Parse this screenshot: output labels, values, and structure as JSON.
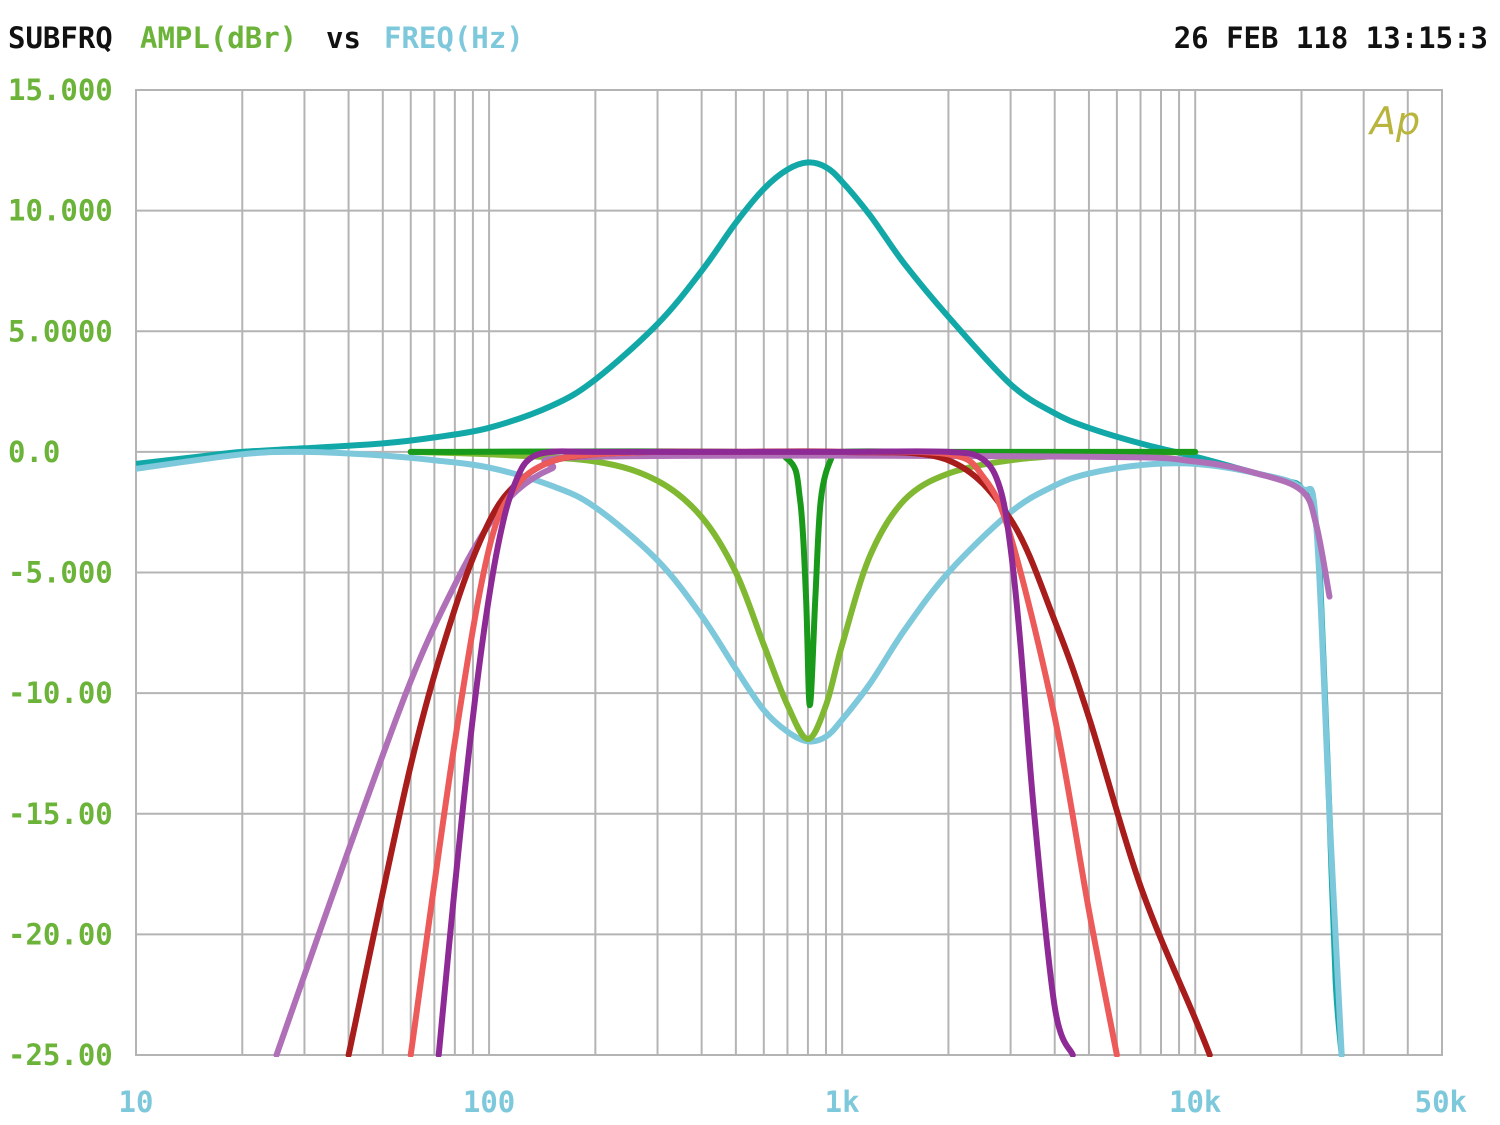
{
  "header": {
    "prefix": "SUBFRQ",
    "ylabel": "AMPL(dBr)",
    "vs": "vs",
    "xlabel": "FREQ(Hz)",
    "timestamp": "26 FEB 118 13:15:3",
    "logo": "Ap"
  },
  "colors": {
    "background": "#ffffff",
    "grid": "#b4b4b4",
    "y_ticks": "#6cb33a",
    "x_ticks": "#7ec8dc",
    "header_text": "#111111",
    "logo": "#b8b43c"
  },
  "chart_data": {
    "type": "line",
    "x_scale": "log",
    "grid": true,
    "xlim": [
      10,
      50000
    ],
    "ylim": [
      -25,
      15
    ],
    "x_ticks": [
      {
        "value": 10,
        "label": "10"
      },
      {
        "value": 100,
        "label": "100"
      },
      {
        "value": 1000,
        "label": "1k"
      },
      {
        "value": 10000,
        "label": "10k"
      },
      {
        "value": 50000,
        "label": "50k"
      }
    ],
    "y_ticks": [
      {
        "value": 15,
        "label": "15.000"
      },
      {
        "value": 10,
        "label": "10.000"
      },
      {
        "value": 5,
        "label": "5.0000"
      },
      {
        "value": 0,
        "label": "0.0"
      },
      {
        "value": -5,
        "label": "-5.000"
      },
      {
        "value": -10,
        "label": "-10.00"
      },
      {
        "value": -15,
        "label": "-15.00"
      },
      {
        "value": -20,
        "label": "-20.00"
      },
      {
        "value": -25,
        "label": "-25.00"
      }
    ],
    "series": [
      {
        "color": "#13a8a8",
        "x": [
          10,
          15,
          20,
          30,
          50,
          70,
          100,
          150,
          200,
          300,
          400,
          500,
          600,
          700,
          800,
          900,
          1000,
          1200,
          1500,
          2000,
          3000,
          4000,
          5000,
          7000,
          10000,
          15000,
          18000,
          20000,
          22000,
          23000,
          24000,
          25000,
          26000
        ],
        "y": [
          -0.5,
          -0.2,
          0,
          0.15,
          0.35,
          0.6,
          1,
          1.9,
          3,
          5.3,
          7.5,
          9.5,
          10.9,
          11.7,
          12,
          11.8,
          11.2,
          9.8,
          7.8,
          5.6,
          2.8,
          1.6,
          1.0,
          0.35,
          -0.2,
          -0.9,
          -1.2,
          -1.5,
          -3,
          -8,
          -15,
          -22,
          -25
        ]
      },
      {
        "color": "#7ec8dc",
        "x": [
          10,
          20,
          30,
          50,
          70,
          100,
          150,
          200,
          300,
          400,
          500,
          600,
          700,
          800,
          900,
          1000,
          1200,
          1500,
          2000,
          3000,
          4000,
          5000,
          7000,
          10000,
          15000,
          20000,
          22000,
          24000,
          26000
        ],
        "y": [
          -0.7,
          -0.1,
          0,
          -0.15,
          -0.35,
          -0.65,
          -1.4,
          -2.3,
          -4.5,
          -6.8,
          -9,
          -10.7,
          -11.6,
          -12,
          -11.8,
          -11.1,
          -9.6,
          -7.4,
          -5,
          -2.5,
          -1.4,
          -0.9,
          -0.55,
          -0.5,
          -0.9,
          -1.5,
          -3,
          -15,
          -25
        ]
      },
      {
        "color": "#80b832",
        "x": [
          60,
          100,
          200,
          300,
          400,
          500,
          600,
          700,
          800,
          900,
          1000,
          1200,
          1500,
          2000,
          3000,
          5000,
          10000
        ],
        "y": [
          0,
          -0.1,
          -0.4,
          -1.2,
          -2.7,
          -5,
          -8,
          -10.5,
          -11.9,
          -10.5,
          -8,
          -4.3,
          -2,
          -0.9,
          -0.35,
          -0.1,
          0
        ]
      },
      {
        "color": "#1a9a1a",
        "x": [
          60,
          500,
          700,
          760,
          790,
          810,
          840,
          870,
          930,
          1000,
          2000,
          10000
        ],
        "y": [
          0,
          0,
          -0.3,
          -2,
          -6,
          -10.5,
          -6,
          -2,
          -0.3,
          0,
          0,
          0
        ]
      },
      {
        "color": "#b070b8",
        "x": [
          25,
          40,
          60,
          80,
          100,
          120,
          150,
          200,
          5000,
          10000,
          15000,
          20000,
          22000,
          24000
        ],
        "y": [
          -25,
          -16.5,
          -9.5,
          -5.5,
          -3,
          -1.6,
          -0.7,
          -0.2,
          -0.2,
          -0.4,
          -0.9,
          -1.6,
          -3,
          -6
        ]
      },
      {
        "color": "#a81c1c",
        "x": [
          40,
          60,
          80,
          100,
          120,
          150,
          200,
          300,
          400,
          500,
          1000,
          2000,
          3000,
          4000,
          5000,
          7000,
          10000,
          11000
        ],
        "y": [
          -25,
          -13,
          -6.5,
          -2.9,
          -1.3,
          -0.4,
          -0.1,
          0,
          0,
          0,
          0,
          -0.35,
          -2.8,
          -7,
          -11,
          -18,
          -23.5,
          -25
        ]
      },
      {
        "color": "#ec5a5a",
        "x": [
          60,
          80,
          100,
          120,
          150,
          200,
          300,
          500,
          1000,
          2000,
          2500,
          3000,
          4000,
          5000,
          6000
        ],
        "y": [
          -25,
          -12,
          -4,
          -1.4,
          -0.4,
          -0.1,
          0,
          0,
          0,
          -0.1,
          -1,
          -3.5,
          -11,
          -19,
          -25
        ]
      },
      {
        "color": "#8e2a96",
        "x": [
          72,
          80,
          90,
          100,
          110,
          120,
          130,
          150,
          200,
          500,
          1000,
          2000,
          2500,
          2800,
          3000,
          3200,
          3500,
          4000,
          4500
        ],
        "y": [
          -25,
          -18,
          -11,
          -6,
          -2.8,
          -1.1,
          -0.3,
          0,
          0,
          0,
          0,
          0,
          -0.3,
          -1.5,
          -4,
          -8,
          -15,
          -23,
          -25
        ]
      }
    ]
  }
}
